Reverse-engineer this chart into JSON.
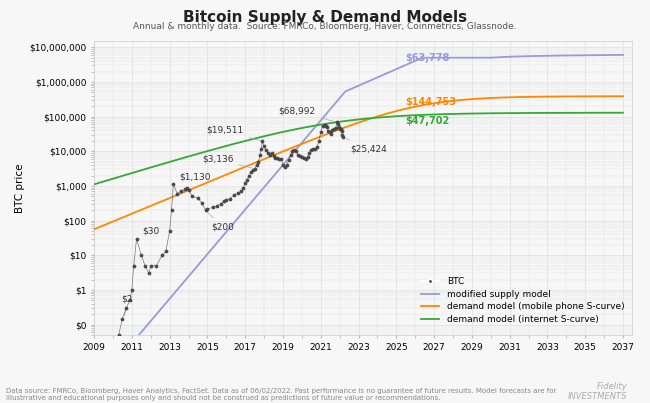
{
  "title": "Bitcoin Supply & Demand Models",
  "subtitle": "Annual & monthly data.  Source: FMRCo, Bloomberg, Haver, Coinmetrics, Glassnode.",
  "footnote": "Data source: FMRCo, Bloomberg, Haver Analytics, FactSet. Data as of 06/02/2022. Past performance is no guarantee of future results. Model forecasts are for\nillustrrative and educational purposes only and should not be construed as predictions of future value or recommendations.",
  "ylabel": "BTC price",
  "xlim": [
    2009,
    2037.5
  ],
  "ylim": [
    0.05,
    15000000
  ],
  "yticks": [
    0.1,
    1,
    10,
    100,
    1000,
    10000,
    100000,
    1000000,
    10000000
  ],
  "ytick_labels": [
    "$0",
    "$1",
    "$10",
    "$100",
    "$1,000",
    "$10,000",
    "$100,000",
    "$1,000,000",
    "$10,000,000"
  ],
  "xticks": [
    2009,
    2011,
    2013,
    2015,
    2017,
    2019,
    2021,
    2023,
    2025,
    2027,
    2029,
    2031,
    2033,
    2035,
    2037
  ],
  "btc_color": "#444444",
  "supply_model_color": "#9999dd",
  "demand_mobile_color": "#ff8800",
  "demand_internet_color": "#33aa33",
  "background_color": "#f7f7f7",
  "grid_color": "#e0e0e0",
  "figsize": [
    6.5,
    4.03
  ],
  "dpi": 100
}
